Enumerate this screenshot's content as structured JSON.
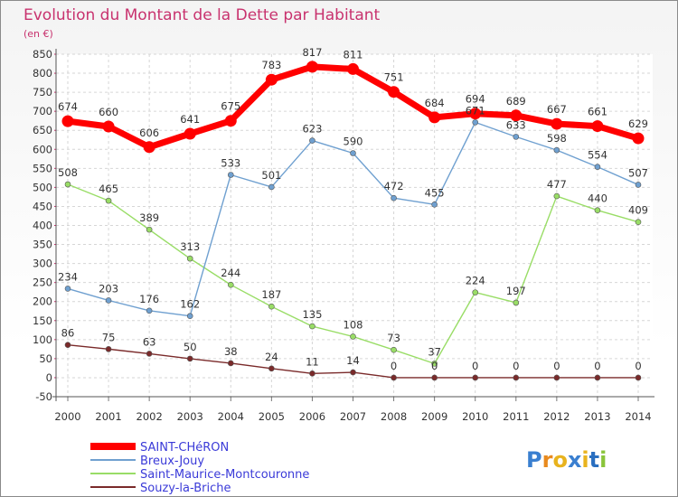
{
  "title": "Evolution du Montant de la Dette par Habitant",
  "subtitle": "(en €)",
  "brand": "Proxiti",
  "chart_data": {
    "type": "line",
    "x": [
      2000,
      2001,
      2002,
      2003,
      2004,
      2005,
      2006,
      2007,
      2008,
      2009,
      2010,
      2011,
      2012,
      2013,
      2014
    ],
    "ylim": [
      -50,
      850
    ],
    "yticks": [
      -50,
      0,
      50,
      100,
      150,
      200,
      250,
      300,
      350,
      400,
      450,
      500,
      550,
      600,
      650,
      700,
      750,
      800,
      850
    ],
    "grid": true,
    "legend_position": "bottom-left",
    "series": [
      {
        "name": "SAINT-CHéRON",
        "color": "#ff0000",
        "values": [
          674,
          660,
          606,
          641,
          675,
          783,
          817,
          811,
          751,
          684,
          694,
          689,
          667,
          661,
          629
        ]
      },
      {
        "name": "Breux-Jouy",
        "color": "#6fa0d0",
        "values": [
          234,
          203,
          176,
          162,
          533,
          501,
          623,
          590,
          472,
          455,
          671,
          633,
          598,
          554,
          507
        ]
      },
      {
        "name": "Saint-Maurice-Montcouronne",
        "color": "#99dd66",
        "values": [
          508,
          465,
          389,
          313,
          244,
          187,
          135,
          108,
          73,
          37,
          224,
          197,
          477,
          440,
          409
        ]
      },
      {
        "name": "Souzy-la-Briche",
        "color": "#7a2a2a",
        "values": [
          86,
          75,
          63,
          50,
          38,
          24,
          11,
          14,
          0,
          0,
          0,
          0,
          0,
          0,
          0
        ]
      }
    ]
  }
}
